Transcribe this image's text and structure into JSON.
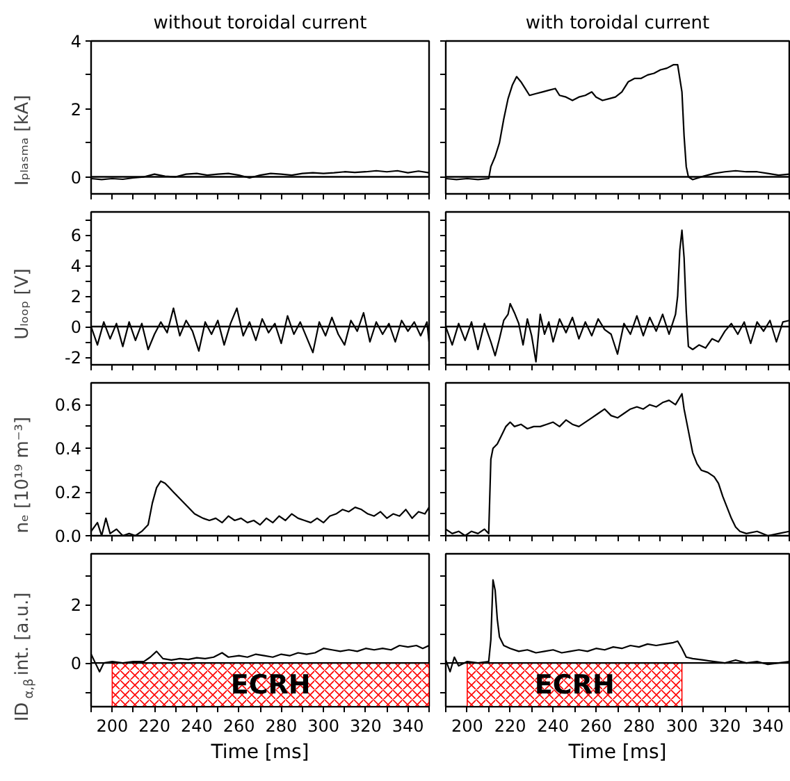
{
  "chart_data": [
    {
      "type": "line",
      "title": "without toroidal current",
      "ylabel": "Iₚₗₐₛₘₐ [kA]",
      "x": [
        190,
        195,
        200,
        205,
        210,
        215,
        220,
        225,
        230,
        235,
        240,
        245,
        250,
        255,
        260,
        265,
        270,
        275,
        280,
        285,
        290,
        295,
        300,
        305,
        310,
        315,
        320,
        325,
        330,
        335,
        340,
        345,
        350
      ],
      "series": [
        {
          "color": "#000000",
          "values": [
            -0.05,
            -0.08,
            -0.05,
            -0.07,
            -0.03,
            0.0,
            0.08,
            0.02,
            0.0,
            0.08,
            0.1,
            0.05,
            0.08,
            0.1,
            0.05,
            -0.03,
            0.05,
            0.1,
            0.08,
            0.05,
            0.1,
            0.12,
            0.1,
            0.12,
            0.15,
            0.13,
            0.15,
            0.18,
            0.15,
            0.18,
            0.12,
            0.17,
            0.12
          ]
        }
      ],
      "xlim": [
        190,
        350
      ],
      "xticks": [
        {
          "value": 190,
          "label": null
        },
        200,
        {
          "value": 210,
          "label": null
        },
        220,
        {
          "value": 230,
          "label": null
        },
        240,
        {
          "value": 250,
          "label": null
        },
        260,
        {
          "value": 270,
          "label": null
        },
        280,
        {
          "value": 290,
          "label": null
        },
        300,
        {
          "value": 310,
          "label": null
        },
        320,
        {
          "value": 330,
          "label": null
        },
        340,
        {
          "value": 350,
          "label": null
        }
      ],
      "ylim": [
        -0.5,
        4
      ],
      "yticks": [
        0,
        {
          "value": 1,
          "label": null
        },
        2,
        {
          "value": 3,
          "label": null
        },
        4
      ],
      "tick_labels": "y",
      "ref_lines": [
        {
          "axis": "y",
          "value": 0,
          "color": "#000000"
        }
      ]
    },
    {
      "type": "line",
      "title": "with toroidal current",
      "x": [
        190,
        195,
        200,
        205,
        210,
        211,
        213,
        215,
        217,
        219,
        221,
        223,
        225,
        227,
        229,
        232,
        235,
        238,
        241,
        243,
        246,
        249,
        252,
        255,
        258,
        260,
        263,
        266,
        269,
        272,
        275,
        278,
        281,
        284,
        287,
        290,
        293,
        296,
        298,
        300,
        301,
        302,
        303,
        305,
        310,
        315,
        320,
        325,
        330,
        335,
        340,
        345,
        350
      ],
      "series": [
        {
          "color": "#000000",
          "values": [
            -0.05,
            -0.08,
            -0.05,
            -0.08,
            -0.05,
            0.3,
            0.6,
            1.0,
            1.7,
            2.3,
            2.7,
            2.95,
            2.8,
            2.6,
            2.4,
            2.45,
            2.5,
            2.55,
            2.6,
            2.4,
            2.35,
            2.25,
            2.35,
            2.4,
            2.5,
            2.35,
            2.25,
            2.3,
            2.35,
            2.5,
            2.8,
            2.9,
            2.9,
            3.0,
            3.05,
            3.15,
            3.2,
            3.3,
            3.3,
            2.5,
            1.2,
            0.3,
            0.0,
            -0.08,
            0.02,
            0.1,
            0.15,
            0.18,
            0.15,
            0.15,
            0.1,
            0.05,
            0.08
          ]
        }
      ],
      "xlim": [
        190,
        350
      ],
      "xticks": [
        {
          "value": 190,
          "label": null
        },
        200,
        {
          "value": 210,
          "label": null
        },
        220,
        {
          "value": 230,
          "label": null
        },
        240,
        {
          "value": 250,
          "label": null
        },
        260,
        {
          "value": 270,
          "label": null
        },
        280,
        {
          "value": 290,
          "label": null
        },
        300,
        {
          "value": 310,
          "label": null
        },
        320,
        {
          "value": 330,
          "label": null
        },
        340,
        {
          "value": 350,
          "label": null
        }
      ],
      "ylim": [
        -0.5,
        4
      ],
      "yticks": [
        0,
        {
          "value": 1,
          "label": null
        },
        2,
        {
          "value": 3,
          "label": null
        },
        4
      ],
      "tick_labels": false,
      "ref_lines": [
        {
          "axis": "y",
          "value": 0,
          "color": "#000000"
        }
      ]
    },
    {
      "type": "line",
      "ylabel": "Uₗₒₒₚ [V]",
      "x": [
        190,
        193,
        196,
        199,
        202,
        205,
        208,
        211,
        214,
        217,
        220,
        223,
        226,
        229,
        232,
        235,
        238,
        241,
        244,
        247,
        250,
        253,
        256,
        259,
        262,
        265,
        268,
        271,
        274,
        277,
        280,
        283,
        286,
        289,
        292,
        295,
        298,
        301,
        304,
        307,
        310,
        313,
        316,
        319,
        322,
        325,
        328,
        331,
        334,
        337,
        340,
        343,
        346,
        349,
        350
      ],
      "series": [
        {
          "color": "#000000",
          "values": [
            0,
            -1.2,
            0.3,
            -0.8,
            0.2,
            -1.3,
            0.3,
            -0.9,
            0.2,
            -1.5,
            -0.5,
            0.3,
            -0.4,
            1.2,
            -0.6,
            0.4,
            -0.3,
            -1.6,
            0.3,
            -0.5,
            0.4,
            -1.2,
            0.2,
            1.2,
            -0.6,
            0.3,
            -0.9,
            0.5,
            -0.4,
            0.2,
            -1.1,
            0.7,
            -0.5,
            0.3,
            -0.7,
            -1.7,
            0.3,
            -0.6,
            0.6,
            -0.5,
            -1.2,
            0.4,
            -0.3,
            0.9,
            -1.0,
            0.3,
            -0.5,
            0.2,
            -1.0,
            0.4,
            -0.3,
            0.3,
            -0.6,
            0.3,
            -1.0
          ]
        }
      ],
      "xlim": [
        190,
        350
      ],
      "xticks": [
        {
          "value": 190,
          "label": null
        },
        200,
        {
          "value": 210,
          "label": null
        },
        220,
        {
          "value": 230,
          "label": null
        },
        240,
        {
          "value": 250,
          "label": null
        },
        260,
        {
          "value": 270,
          "label": null
        },
        280,
        {
          "value": 290,
          "label": null
        },
        300,
        {
          "value": 310,
          "label": null
        },
        320,
        {
          "value": 330,
          "label": null
        },
        340,
        {
          "value": 350,
          "label": null
        }
      ],
      "ylim": [
        -2.5,
        7.5
      ],
      "yticks": [
        -2,
        {
          "value": -1,
          "label": null
        },
        0,
        {
          "value": 1,
          "label": null
        },
        2,
        {
          "value": 3,
          "label": null
        },
        4,
        {
          "value": 5,
          "label": null
        },
        6,
        {
          "value": 7,
          "label": null
        }
      ],
      "tick_labels": "y",
      "ref_lines": [
        {
          "axis": "y",
          "value": 0,
          "color": "#000000"
        }
      ]
    },
    {
      "type": "line",
      "x": [
        190,
        193,
        196,
        199,
        202,
        205,
        208,
        211,
        213,
        215,
        217,
        219,
        220,
        222,
        224,
        226,
        228,
        230,
        232,
        234,
        236,
        238,
        240,
        243,
        246,
        249,
        252,
        255,
        258,
        261,
        264,
        267,
        270,
        273,
        276,
        279,
        282,
        285,
        288,
        291,
        294,
        297,
        298,
        299,
        300,
        301,
        302,
        303,
        305,
        308,
        311,
        314,
        317,
        320,
        323,
        326,
        329,
        332,
        335,
        338,
        341,
        344,
        347,
        350
      ],
      "series": [
        {
          "color": "#000000",
          "values": [
            0,
            -1.2,
            0.2,
            -0.9,
            0.3,
            -1.5,
            0.2,
            -1.0,
            -1.9,
            -0.8,
            0.4,
            0.8,
            1.5,
            0.9,
            0.2,
            -1.2,
            0.5,
            -0.6,
            -2.3,
            0.8,
            -0.5,
            0.3,
            -1.0,
            0.5,
            -0.4,
            0.6,
            -0.8,
            0.3,
            -0.6,
            0.5,
            -0.2,
            -0.5,
            -1.8,
            0.2,
            -0.5,
            0.7,
            -0.6,
            0.6,
            -0.3,
            0.8,
            -0.5,
            0.8,
            2.0,
            5.0,
            6.3,
            4.5,
            1.0,
            -1.3,
            -1.5,
            -1.2,
            -1.4,
            -0.8,
            -1.0,
            -0.3,
            0.2,
            -0.5,
            0.3,
            -1.1,
            0.3,
            -0.3,
            0.4,
            -1.0,
            0.3,
            0.4
          ]
        }
      ],
      "xlim": [
        190,
        350
      ],
      "xticks": [
        {
          "value": 190,
          "label": null
        },
        200,
        {
          "value": 210,
          "label": null
        },
        220,
        {
          "value": 230,
          "label": null
        },
        240,
        {
          "value": 250,
          "label": null
        },
        260,
        {
          "value": 270,
          "label": null
        },
        280,
        {
          "value": 290,
          "label": null
        },
        300,
        {
          "value": 310,
          "label": null
        },
        320,
        {
          "value": 330,
          "label": null
        },
        340,
        {
          "value": 350,
          "label": null
        }
      ],
      "ylim": [
        -2.5,
        7.5
      ],
      "yticks": [
        -2,
        {
          "value": -1,
          "label": null
        },
        0,
        {
          "value": 1,
          "label": null
        },
        2,
        {
          "value": 3,
          "label": null
        },
        4,
        {
          "value": 5,
          "label": null
        },
        6,
        {
          "value": 7,
          "label": null
        }
      ],
      "tick_labels": false,
      "ref_lines": [
        {
          "axis": "y",
          "value": 0,
          "color": "#000000"
        }
      ]
    },
    {
      "type": "line",
      "ylabel": "nₑ [10¹⁹ m⁻³]",
      "x": [
        190,
        193,
        195,
        197,
        199,
        202,
        205,
        208,
        211,
        214,
        217,
        219,
        221,
        223,
        225,
        227,
        229,
        231,
        233,
        235,
        237,
        239,
        241,
        243,
        246,
        249,
        252,
        255,
        258,
        261,
        264,
        267,
        270,
        273,
        276,
        279,
        282,
        285,
        288,
        291,
        294,
        297,
        300,
        303,
        306,
        309,
        312,
        315,
        318,
        321,
        324,
        327,
        330,
        333,
        336,
        339,
        342,
        345,
        348,
        350
      ],
      "series": [
        {
          "color": "#000000",
          "values": [
            0.02,
            0.06,
            0.0,
            0.08,
            0.01,
            0.03,
            0.0,
            0.01,
            0.0,
            0.02,
            0.05,
            0.15,
            0.22,
            0.25,
            0.24,
            0.22,
            0.2,
            0.18,
            0.16,
            0.14,
            0.12,
            0.1,
            0.09,
            0.08,
            0.07,
            0.08,
            0.06,
            0.09,
            0.07,
            0.08,
            0.06,
            0.07,
            0.05,
            0.08,
            0.06,
            0.09,
            0.07,
            0.1,
            0.08,
            0.07,
            0.06,
            0.08,
            0.06,
            0.09,
            0.1,
            0.12,
            0.11,
            0.13,
            0.12,
            0.1,
            0.09,
            0.11,
            0.08,
            0.1,
            0.09,
            0.12,
            0.08,
            0.11,
            0.1,
            0.13
          ]
        }
      ],
      "xlim": [
        190,
        350
      ],
      "xticks": [
        {
          "value": 190,
          "label": null
        },
        200,
        {
          "value": 210,
          "label": null
        },
        220,
        {
          "value": 230,
          "label": null
        },
        240,
        {
          "value": 250,
          "label": null
        },
        260,
        {
          "value": 270,
          "label": null
        },
        280,
        {
          "value": 290,
          "label": null
        },
        300,
        {
          "value": 310,
          "label": null
        },
        320,
        {
          "value": 330,
          "label": null
        },
        340,
        {
          "value": 350,
          "label": null
        }
      ],
      "ylim": [
        0,
        0.7
      ],
      "yticks": [
        {
          "value": 0,
          "label": "0.0"
        },
        {
          "value": 0.1,
          "label": null
        },
        0.2,
        {
          "value": 0.3,
          "label": null
        },
        0.4,
        {
          "value": 0.5,
          "label": null
        },
        0.6
      ],
      "tick_labels": "y"
    },
    {
      "type": "line",
      "x": [
        190,
        193,
        196,
        199,
        202,
        205,
        208,
        210,
        211,
        212,
        214,
        216,
        218,
        220,
        222,
        225,
        228,
        231,
        234,
        237,
        240,
        243,
        246,
        249,
        252,
        255,
        258,
        261,
        264,
        267,
        270,
        273,
        276,
        279,
        282,
        285,
        288,
        291,
        294,
        297,
        300,
        301,
        303,
        305,
        307,
        309,
        312,
        315,
        317,
        319,
        321,
        323,
        325,
        327,
        330,
        335,
        340,
        345,
        350
      ],
      "series": [
        {
          "color": "#000000",
          "values": [
            0.03,
            0.01,
            0.02,
            0.0,
            0.02,
            0.01,
            0.03,
            0.01,
            0.35,
            0.4,
            0.42,
            0.46,
            0.5,
            0.52,
            0.5,
            0.51,
            0.49,
            0.5,
            0.5,
            0.51,
            0.52,
            0.5,
            0.53,
            0.51,
            0.5,
            0.52,
            0.54,
            0.56,
            0.58,
            0.55,
            0.54,
            0.56,
            0.58,
            0.59,
            0.58,
            0.6,
            0.59,
            0.61,
            0.62,
            0.6,
            0.65,
            0.58,
            0.48,
            0.38,
            0.33,
            0.3,
            0.29,
            0.27,
            0.24,
            0.18,
            0.13,
            0.08,
            0.04,
            0.02,
            0.01,
            0.02,
            0.0,
            0.01,
            0.02
          ]
        }
      ],
      "xlim": [
        190,
        350
      ],
      "xticks": [
        {
          "value": 190,
          "label": null
        },
        200,
        {
          "value": 210,
          "label": null
        },
        220,
        {
          "value": 230,
          "label": null
        },
        240,
        {
          "value": 250,
          "label": null
        },
        260,
        {
          "value": 270,
          "label": null
        },
        280,
        {
          "value": 290,
          "label": null
        },
        300,
        {
          "value": 310,
          "label": null
        },
        320,
        {
          "value": 330,
          "label": null
        },
        340,
        {
          "value": 350,
          "label": null
        }
      ],
      "ylim": [
        0,
        0.7
      ],
      "yticks": [
        0,
        {
          "value": 0.1,
          "label": null
        },
        0.2,
        {
          "value": 0.3,
          "label": null
        },
        0.4,
        {
          "value": 0.5,
          "label": null
        },
        0.6
      ],
      "tick_labels": false
    },
    {
      "type": "line",
      "ylabel": "ID$_{α,β}$ int. [a.u.]",
      "xlabel": "Time [ms]",
      "x": [
        190,
        192,
        194,
        196,
        200,
        205,
        210,
        215,
        218,
        221,
        224,
        228,
        232,
        236,
        240,
        244,
        248,
        252,
        255,
        260,
        264,
        268,
        272,
        276,
        280,
        284,
        288,
        292,
        296,
        300,
        304,
        308,
        312,
        316,
        320,
        324,
        328,
        332,
        336,
        340,
        344,
        347,
        350
      ],
      "series": [
        {
          "color": "#000000",
          "values": [
            0.3,
            0.0,
            -0.3,
            0.0,
            0.05,
            0.0,
            0.05,
            0.05,
            0.2,
            0.4,
            0.15,
            0.1,
            0.15,
            0.12,
            0.18,
            0.15,
            0.2,
            0.35,
            0.2,
            0.25,
            0.2,
            0.3,
            0.25,
            0.2,
            0.3,
            0.25,
            0.35,
            0.3,
            0.35,
            0.5,
            0.45,
            0.4,
            0.45,
            0.4,
            0.5,
            0.45,
            0.5,
            0.45,
            0.6,
            0.55,
            0.6,
            0.5,
            0.6
          ]
        }
      ],
      "xlim": [
        190,
        350
      ],
      "xticks": [
        {
          "value": 190,
          "label": null
        },
        200,
        {
          "value": 210,
          "label": null
        },
        220,
        {
          "value": 230,
          "label": null
        },
        240,
        {
          "value": 250,
          "label": null
        },
        260,
        {
          "value": 270,
          "label": null
        },
        280,
        {
          "value": 290,
          "label": null
        },
        300,
        {
          "value": 310,
          "label": null
        },
        320,
        {
          "value": 330,
          "label": null
        },
        340,
        {
          "value": 350,
          "label": null
        }
      ],
      "ylim": [
        -1.5,
        3.75
      ],
      "yticks": [
        {
          "value": -1,
          "label": null
        },
        0,
        {
          "value": 1,
          "label": null
        },
        2,
        {
          "value": 3,
          "label": null
        }
      ],
      "ref_lines": [
        {
          "axis": "y",
          "value": 0,
          "color": "#000000"
        }
      ],
      "bands": [
        {
          "axis": "x",
          "from": 200,
          "to": 350,
          "label": "ECRH",
          "color": "#ff0000"
        }
      ]
    },
    {
      "type": "line",
      "xlabel": "Time [ms]",
      "x": [
        190,
        192,
        194,
        196,
        200,
        205,
        210,
        211,
        212,
        213,
        214,
        215,
        217,
        220,
        224,
        228,
        232,
        236,
        240,
        244,
        248,
        252,
        256,
        260,
        264,
        268,
        272,
        276,
        280,
        284,
        288,
        292,
        296,
        298,
        300,
        302,
        305,
        310,
        315,
        320,
        325,
        330,
        335,
        340,
        345,
        350
      ],
      "series": [
        {
          "color": "#000000",
          "values": [
            0.1,
            -0.3,
            0.2,
            -0.1,
            0.05,
            0.0,
            0.05,
            0.8,
            2.85,
            2.5,
            1.5,
            0.9,
            0.6,
            0.5,
            0.4,
            0.45,
            0.35,
            0.4,
            0.45,
            0.35,
            0.4,
            0.45,
            0.4,
            0.5,
            0.45,
            0.55,
            0.5,
            0.6,
            0.55,
            0.65,
            0.6,
            0.65,
            0.7,
            0.75,
            0.5,
            0.2,
            0.15,
            0.1,
            0.05,
            0.0,
            0.1,
            0.0,
            0.05,
            -0.05,
            0.0,
            0.05
          ]
        }
      ],
      "xlim": [
        190,
        350
      ],
      "xticks": [
        {
          "value": 190,
          "label": null
        },
        200,
        {
          "value": 210,
          "label": null
        },
        220,
        {
          "value": 230,
          "label": null
        },
        240,
        {
          "value": 250,
          "label": null
        },
        260,
        {
          "value": 270,
          "label": null
        },
        280,
        {
          "value": 290,
          "label": null
        },
        300,
        {
          "value": 310,
          "label": null
        },
        320,
        {
          "value": 330,
          "label": null
        },
        340,
        {
          "value": 350,
          "label": null
        }
      ],
      "ylim": [
        -1.5,
        3.75
      ],
      "yticks": [
        {
          "value": -1,
          "label": null
        },
        0,
        {
          "value": 1,
          "label": null
        },
        2,
        {
          "value": 3,
          "label": null
        }
      ],
      "tick_labels": "x",
      "ref_lines": [
        {
          "axis": "y",
          "value": 0,
          "color": "#000000"
        }
      ],
      "bands": [
        {
          "axis": "x",
          "from": 200,
          "to": 300,
          "label": "ECRH",
          "color": "#ff0000"
        }
      ]
    }
  ]
}
